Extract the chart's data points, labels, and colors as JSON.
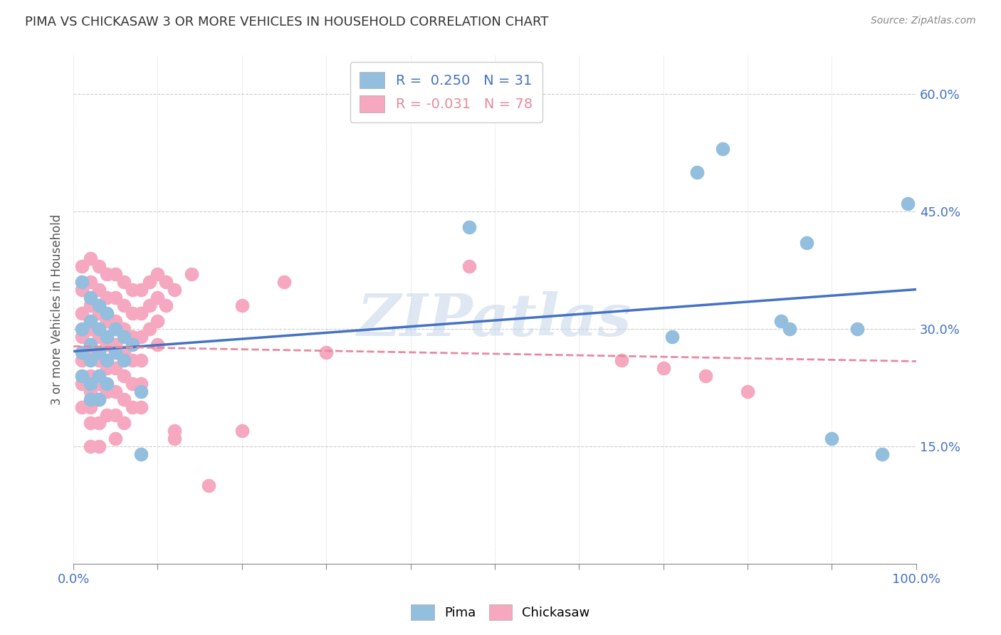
{
  "title": "PIMA VS CHICKASAW 3 OR MORE VEHICLES IN HOUSEHOLD CORRELATION CHART",
  "source": "Source: ZipAtlas.com",
  "ylabel": "3 or more Vehicles in Household",
  "ytick_labels": [
    "15.0%",
    "30.0%",
    "45.0%",
    "60.0%"
  ],
  "ytick_values": [
    0.15,
    0.3,
    0.45,
    0.6
  ],
  "xlim": [
    0.0,
    1.0
  ],
  "ylim": [
    0.0,
    0.65
  ],
  "pima_color": "#93bede",
  "chickasaw_color": "#f5a8bf",
  "pima_line_color": "#4472c4",
  "chickasaw_line_color": "#e8899e",
  "background_color": "#ffffff",
  "watermark": "ZIPatlas",
  "pima_scatter": [
    [
      0.01,
      0.36
    ],
    [
      0.01,
      0.3
    ],
    [
      0.01,
      0.27
    ],
    [
      0.01,
      0.24
    ],
    [
      0.02,
      0.34
    ],
    [
      0.02,
      0.31
    ],
    [
      0.02,
      0.28
    ],
    [
      0.02,
      0.26
    ],
    [
      0.02,
      0.23
    ],
    [
      0.02,
      0.21
    ],
    [
      0.03,
      0.33
    ],
    [
      0.03,
      0.3
    ],
    [
      0.03,
      0.27
    ],
    [
      0.03,
      0.24
    ],
    [
      0.03,
      0.21
    ],
    [
      0.04,
      0.32
    ],
    [
      0.04,
      0.29
    ],
    [
      0.04,
      0.26
    ],
    [
      0.04,
      0.23
    ],
    [
      0.05,
      0.3
    ],
    [
      0.05,
      0.27
    ],
    [
      0.06,
      0.29
    ],
    [
      0.06,
      0.26
    ],
    [
      0.07,
      0.28
    ],
    [
      0.08,
      0.22
    ],
    [
      0.08,
      0.14
    ],
    [
      0.47,
      0.43
    ],
    [
      0.71,
      0.29
    ],
    [
      0.74,
      0.5
    ],
    [
      0.77,
      0.53
    ],
    [
      0.84,
      0.31
    ],
    [
      0.85,
      0.3
    ],
    [
      0.87,
      0.41
    ],
    [
      0.9,
      0.16
    ],
    [
      0.93,
      0.3
    ],
    [
      0.96,
      0.14
    ],
    [
      0.99,
      0.46
    ]
  ],
  "chickasaw_scatter": [
    [
      0.01,
      0.38
    ],
    [
      0.01,
      0.35
    ],
    [
      0.01,
      0.32
    ],
    [
      0.01,
      0.29
    ],
    [
      0.01,
      0.26
    ],
    [
      0.01,
      0.23
    ],
    [
      0.01,
      0.2
    ],
    [
      0.02,
      0.39
    ],
    [
      0.02,
      0.36
    ],
    [
      0.02,
      0.33
    ],
    [
      0.02,
      0.3
    ],
    [
      0.02,
      0.27
    ],
    [
      0.02,
      0.24
    ],
    [
      0.02,
      0.22
    ],
    [
      0.02,
      0.2
    ],
    [
      0.02,
      0.18
    ],
    [
      0.02,
      0.15
    ],
    [
      0.03,
      0.38
    ],
    [
      0.03,
      0.35
    ],
    [
      0.03,
      0.32
    ],
    [
      0.03,
      0.29
    ],
    [
      0.03,
      0.26
    ],
    [
      0.03,
      0.23
    ],
    [
      0.03,
      0.21
    ],
    [
      0.03,
      0.18
    ],
    [
      0.03,
      0.15
    ],
    [
      0.04,
      0.37
    ],
    [
      0.04,
      0.34
    ],
    [
      0.04,
      0.31
    ],
    [
      0.04,
      0.28
    ],
    [
      0.04,
      0.25
    ],
    [
      0.04,
      0.22
    ],
    [
      0.04,
      0.19
    ],
    [
      0.05,
      0.37
    ],
    [
      0.05,
      0.34
    ],
    [
      0.05,
      0.31
    ],
    [
      0.05,
      0.28
    ],
    [
      0.05,
      0.25
    ],
    [
      0.05,
      0.22
    ],
    [
      0.05,
      0.19
    ],
    [
      0.05,
      0.16
    ],
    [
      0.06,
      0.36
    ],
    [
      0.06,
      0.33
    ],
    [
      0.06,
      0.3
    ],
    [
      0.06,
      0.27
    ],
    [
      0.06,
      0.24
    ],
    [
      0.06,
      0.21
    ],
    [
      0.06,
      0.18
    ],
    [
      0.07,
      0.35
    ],
    [
      0.07,
      0.32
    ],
    [
      0.07,
      0.29
    ],
    [
      0.07,
      0.26
    ],
    [
      0.07,
      0.23
    ],
    [
      0.07,
      0.2
    ],
    [
      0.08,
      0.35
    ],
    [
      0.08,
      0.32
    ],
    [
      0.08,
      0.29
    ],
    [
      0.08,
      0.26
    ],
    [
      0.08,
      0.23
    ],
    [
      0.08,
      0.2
    ],
    [
      0.09,
      0.36
    ],
    [
      0.09,
      0.33
    ],
    [
      0.09,
      0.3
    ],
    [
      0.1,
      0.37
    ],
    [
      0.1,
      0.34
    ],
    [
      0.1,
      0.31
    ],
    [
      0.1,
      0.28
    ],
    [
      0.11,
      0.36
    ],
    [
      0.11,
      0.33
    ],
    [
      0.12,
      0.35
    ],
    [
      0.12,
      0.17
    ],
    [
      0.12,
      0.16
    ],
    [
      0.14,
      0.37
    ],
    [
      0.16,
      0.1
    ],
    [
      0.2,
      0.33
    ],
    [
      0.2,
      0.17
    ],
    [
      0.25,
      0.36
    ],
    [
      0.3,
      0.27
    ],
    [
      0.47,
      0.38
    ],
    [
      0.65,
      0.26
    ],
    [
      0.7,
      0.25
    ],
    [
      0.75,
      0.24
    ],
    [
      0.8,
      0.22
    ]
  ]
}
